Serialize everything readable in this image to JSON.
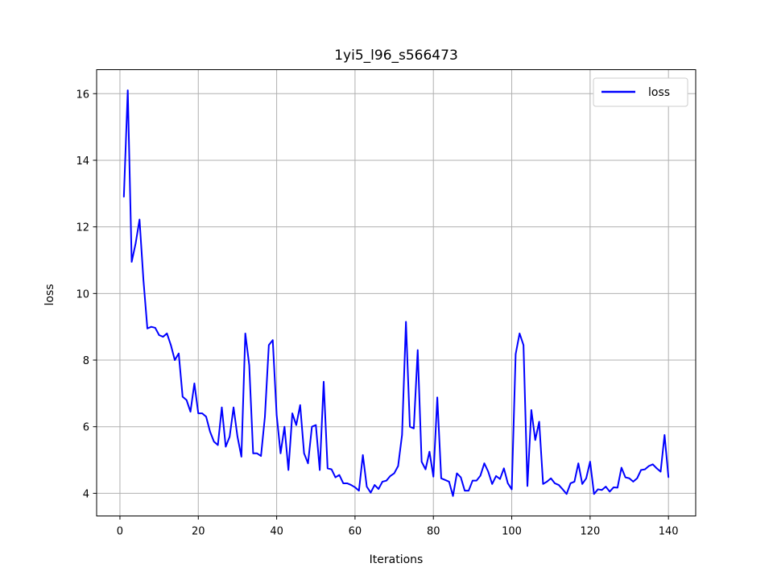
{
  "chart_data": {
    "type": "line",
    "title": "1yi5_l96_s566473",
    "xlabel": "Iterations",
    "ylabel": "loss",
    "xlim": [
      -5.95,
      146.95
    ],
    "ylim": [
      3.32,
      16.72
    ],
    "xticks": [
      0,
      20,
      40,
      60,
      80,
      100,
      120,
      140
    ],
    "yticks": [
      4,
      6,
      8,
      10,
      12,
      14,
      16
    ],
    "grid": true,
    "legend": {
      "placement": "top-right",
      "entries": [
        "loss"
      ]
    },
    "colors": {
      "loss": "#0000ff"
    },
    "series": [
      {
        "name": "loss",
        "x": [
          1,
          2,
          3,
          4,
          5,
          6,
          7,
          8,
          9,
          10,
          11,
          12,
          13,
          14,
          15,
          16,
          17,
          18,
          19,
          20,
          21,
          22,
          23,
          24,
          25,
          26,
          27,
          28,
          29,
          30,
          31,
          32,
          33,
          34,
          35,
          36,
          37,
          38,
          39,
          40,
          41,
          42,
          43,
          44,
          45,
          46,
          47,
          48,
          49,
          50,
          51,
          52,
          53,
          54,
          55,
          56,
          57,
          58,
          59,
          60,
          61,
          62,
          63,
          64,
          65,
          66,
          67,
          68,
          69,
          70,
          71,
          72,
          73,
          74,
          75,
          76,
          77,
          78,
          79,
          80,
          81,
          82,
          83,
          84,
          85,
          86,
          87,
          88,
          89,
          90,
          91,
          92,
          93,
          94,
          95,
          96,
          97,
          98,
          99,
          100,
          101,
          102,
          103,
          104,
          105,
          106,
          107,
          108,
          109,
          110,
          111,
          112,
          113,
          114,
          115,
          116,
          117,
          118,
          119,
          120,
          121,
          122,
          123,
          124,
          125,
          126,
          127,
          128,
          129,
          130,
          131,
          132,
          133,
          134,
          135,
          136,
          137,
          138,
          139,
          140
        ],
        "y": [
          12.9,
          16.1,
          10.95,
          11.5,
          12.22,
          10.4,
          8.95,
          9.0,
          8.97,
          8.75,
          8.7,
          8.8,
          8.45,
          8.0,
          8.2,
          6.9,
          6.8,
          6.45,
          7.3,
          6.4,
          6.4,
          6.3,
          5.85,
          5.55,
          5.45,
          6.58,
          5.4,
          5.7,
          6.58,
          5.7,
          5.1,
          8.8,
          7.85,
          5.2,
          5.2,
          5.12,
          6.3,
          8.45,
          8.6,
          6.35,
          5.2,
          6.0,
          4.7,
          6.4,
          6.05,
          6.65,
          5.2,
          4.9,
          6.0,
          6.05,
          4.7,
          7.35,
          4.75,
          4.72,
          4.48,
          4.55,
          4.3,
          4.3,
          4.25,
          4.18,
          4.08,
          5.15,
          4.2,
          4.02,
          4.25,
          4.13,
          4.35,
          4.38,
          4.52,
          4.6,
          4.82,
          5.75,
          9.15,
          6.0,
          5.95,
          8.3,
          4.95,
          4.72,
          5.25,
          4.5,
          6.88,
          4.45,
          4.4,
          4.35,
          3.92,
          4.6,
          4.48,
          4.08,
          4.08,
          4.38,
          4.38,
          4.53,
          4.9,
          4.65,
          4.28,
          4.52,
          4.43,
          4.75,
          4.3,
          4.12,
          8.18,
          8.8,
          8.45,
          4.22,
          6.5,
          5.6,
          6.15,
          4.28,
          4.35,
          4.45,
          4.3,
          4.25,
          4.12,
          3.98,
          4.3,
          4.35,
          4.9,
          4.28,
          4.45,
          4.95,
          3.98,
          4.12,
          4.1,
          4.2,
          4.05,
          4.18,
          4.17,
          4.77,
          4.48,
          4.45,
          4.35,
          4.45,
          4.7,
          4.72,
          4.82,
          4.87,
          4.75,
          4.65,
          5.75,
          4.48
        ]
      }
    ]
  }
}
